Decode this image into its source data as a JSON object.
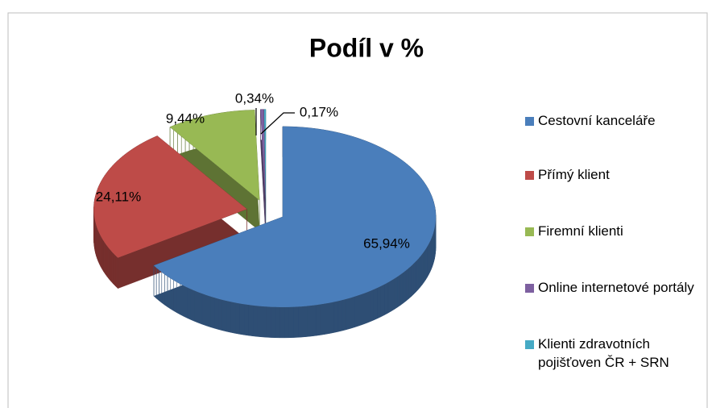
{
  "chart_data": {
    "type": "pie",
    "title": "Podíl v %",
    "categories": [
      "Cestovní kanceláře",
      "Přímý klient",
      "Firemní klienti",
      "Online internetové portály",
      "Klienti zdravotních pojišťoven ČR + SRN"
    ],
    "values": [
      65.94,
      24.11,
      9.44,
      0.34,
      0.17
    ],
    "value_labels": [
      "65,94%",
      "24,11%",
      "9,44%",
      "0,34%",
      "0,17%"
    ],
    "colors": [
      "#4a7ebb",
      "#be4b48",
      "#98b954",
      "#7d60a0",
      "#46aac5"
    ],
    "legend": "right"
  }
}
